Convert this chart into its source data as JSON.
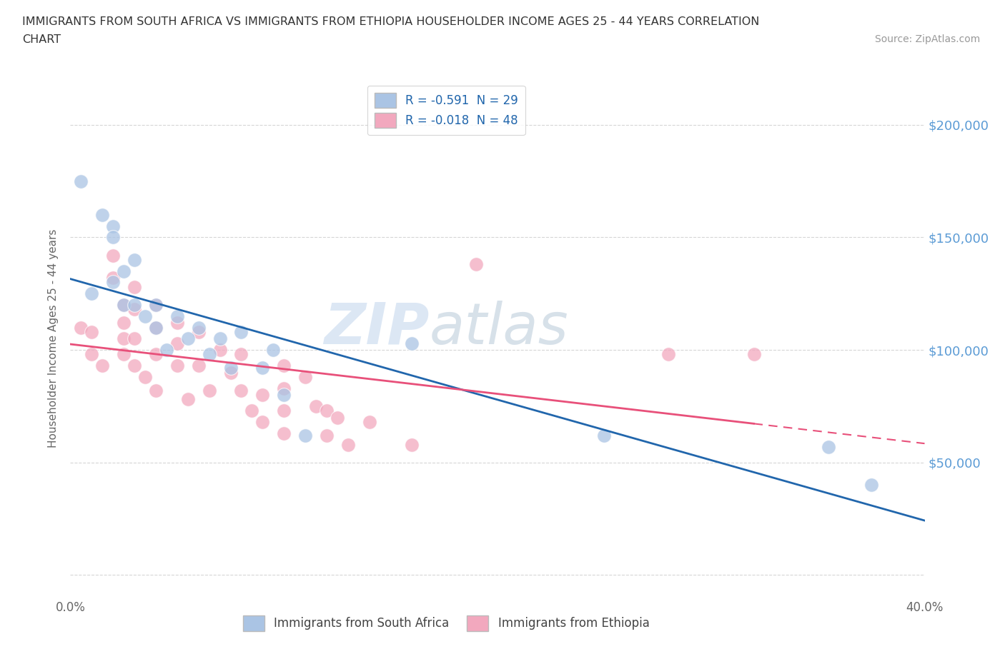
{
  "title_line1": "IMMIGRANTS FROM SOUTH AFRICA VS IMMIGRANTS FROM ETHIOPIA HOUSEHOLDER INCOME AGES 25 - 44 YEARS CORRELATION",
  "title_line2": "CHART",
  "source_text": "Source: ZipAtlas.com",
  "ylabel": "Householder Income Ages 25 - 44 years",
  "watermark_zip": "ZIP",
  "watermark_atlas": "atlas",
  "xlim": [
    0.0,
    0.4
  ],
  "ylim": [
    -10000,
    220000
  ],
  "yticks": [
    0,
    50000,
    100000,
    150000,
    200000
  ],
  "ytick_labels": [
    "",
    "$50,000",
    "$100,000",
    "$150,000",
    "$200,000"
  ],
  "xticks": [
    0.0,
    0.05,
    0.1,
    0.15,
    0.2,
    0.25,
    0.3,
    0.35,
    0.4
  ],
  "xtick_labels": [
    "0.0%",
    "",
    "",
    "",
    "",
    "",
    "",
    "",
    "40.0%"
  ],
  "south_africa_color": "#aac4e4",
  "ethiopia_color": "#f2a8be",
  "south_africa_line_color": "#2166ac",
  "ethiopia_line_color": "#e8507a",
  "background_color": "#ffffff",
  "grid_color": "#cccccc",
  "title_color": "#333333",
  "axis_label_color": "#666666",
  "right_ytick_color": "#5b9bd5",
  "sa_legend_label": "R = -0.591  N = 29",
  "et_legend_label": "R = -0.018  N = 48",
  "bottom_legend_sa": "Immigrants from South Africa",
  "bottom_legend_et": "Immigrants from Ethiopia",
  "south_africa_x": [
    0.005,
    0.01,
    0.015,
    0.02,
    0.02,
    0.02,
    0.025,
    0.025,
    0.03,
    0.03,
    0.035,
    0.04,
    0.04,
    0.045,
    0.05,
    0.055,
    0.06,
    0.065,
    0.07,
    0.075,
    0.08,
    0.09,
    0.095,
    0.1,
    0.11,
    0.16,
    0.25,
    0.355,
    0.375
  ],
  "south_africa_y": [
    175000,
    125000,
    160000,
    155000,
    150000,
    130000,
    135000,
    120000,
    140000,
    120000,
    115000,
    120000,
    110000,
    100000,
    115000,
    105000,
    110000,
    98000,
    105000,
    92000,
    108000,
    92000,
    100000,
    80000,
    62000,
    103000,
    62000,
    57000,
    40000
  ],
  "ethiopia_x": [
    0.005,
    0.01,
    0.01,
    0.015,
    0.02,
    0.02,
    0.025,
    0.025,
    0.025,
    0.025,
    0.03,
    0.03,
    0.03,
    0.03,
    0.035,
    0.04,
    0.04,
    0.04,
    0.04,
    0.05,
    0.05,
    0.05,
    0.055,
    0.06,
    0.06,
    0.065,
    0.07,
    0.075,
    0.08,
    0.08,
    0.085,
    0.09,
    0.09,
    0.1,
    0.1,
    0.1,
    0.1,
    0.11,
    0.115,
    0.12,
    0.12,
    0.125,
    0.13,
    0.14,
    0.16,
    0.19,
    0.28,
    0.32
  ],
  "ethiopia_y": [
    110000,
    108000,
    98000,
    93000,
    142000,
    132000,
    120000,
    112000,
    105000,
    98000,
    128000,
    118000,
    105000,
    93000,
    88000,
    120000,
    110000,
    98000,
    82000,
    112000,
    103000,
    93000,
    78000,
    108000,
    93000,
    82000,
    100000,
    90000,
    98000,
    82000,
    73000,
    80000,
    68000,
    93000,
    83000,
    73000,
    63000,
    88000,
    75000,
    73000,
    62000,
    70000,
    58000,
    68000,
    58000,
    138000,
    98000,
    98000
  ]
}
